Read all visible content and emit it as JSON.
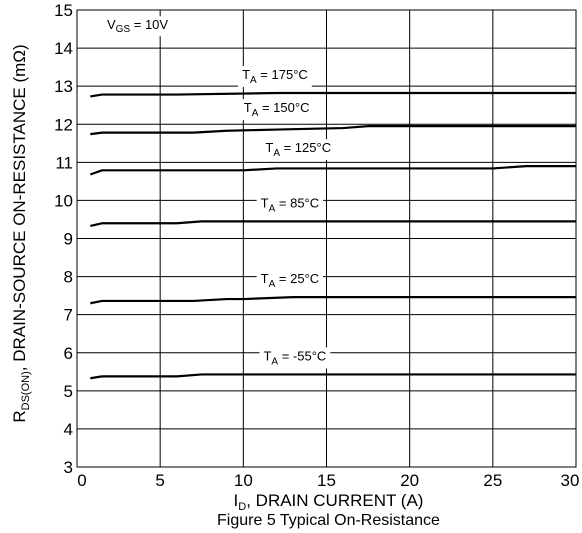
{
  "chart_data": {
    "type": "line",
    "xlabel": {
      "prefix": "I",
      "sub": "D",
      "rest": ", DRAIN CURRENT (A)"
    },
    "ylabel": {
      "prefix": "R",
      "sub": "DS(ON)",
      "rest": ", DRAIN-SOURCE ON-RESISTANCE (mΩ)"
    },
    "xlim": [
      0,
      30
    ],
    "ylim": [
      3,
      15
    ],
    "xticks": [
      0,
      5,
      10,
      15,
      20,
      25,
      30
    ],
    "yticks": [
      3,
      4,
      5,
      6,
      7,
      8,
      9,
      10,
      11,
      12,
      13,
      14,
      15
    ],
    "grid": true,
    "condition": {
      "prefix": "V",
      "sub": "GS",
      "rest": " = 10V"
    },
    "caption": "Figure 5 Typical On-Resistance",
    "series": [
      {
        "name": "T_A = 175°C",
        "label": {
          "prefix": "T",
          "sub": "A",
          "rest": " = 175°C"
        },
        "x": [
          0.8,
          1.5,
          6,
          12,
          16,
          20,
          25,
          30
        ],
        "y": [
          12.73,
          12.78,
          12.78,
          12.82,
          12.82,
          12.82,
          12.82,
          12.82
        ]
      },
      {
        "name": "T_A = 150°C",
        "label": {
          "prefix": "T",
          "sub": "A",
          "rest": " = 150°C"
        },
        "x": [
          0.8,
          1.5,
          7,
          9,
          12,
          16,
          17.5,
          30
        ],
        "y": [
          11.74,
          11.78,
          11.78,
          11.83,
          11.86,
          11.9,
          11.95,
          11.95
        ]
      },
      {
        "name": "T_A = 125°C",
        "label": {
          "prefix": "T",
          "sub": "A",
          "rest": " = 125°C"
        },
        "x": [
          0.8,
          1.5,
          10,
          12,
          25,
          27,
          30
        ],
        "y": [
          10.68,
          10.79,
          10.79,
          10.84,
          10.84,
          10.9,
          10.9
        ]
      },
      {
        "name": "T_A = 85°C",
        "label": {
          "prefix": "T",
          "sub": "A",
          "rest": " = 85°C"
        },
        "x": [
          0.8,
          1.5,
          6,
          7.5,
          30
        ],
        "y": [
          9.33,
          9.4,
          9.4,
          9.45,
          9.45
        ]
      },
      {
        "name": "T_A = 25°C",
        "label": {
          "prefix": "T",
          "sub": "A",
          "rest": " = 25°C"
        },
        "x": [
          0.8,
          1.5,
          7,
          9,
          10,
          13,
          30
        ],
        "y": [
          7.3,
          7.36,
          7.36,
          7.41,
          7.41,
          7.46,
          7.46
        ]
      },
      {
        "name": "T_A = -55°C",
        "label": {
          "prefix": "T",
          "sub": "A",
          "rest": " = -55°C"
        },
        "x": [
          0.8,
          1.5,
          6,
          7.5,
          30
        ],
        "y": [
          5.33,
          5.38,
          5.38,
          5.43,
          5.43
        ]
      }
    ]
  }
}
